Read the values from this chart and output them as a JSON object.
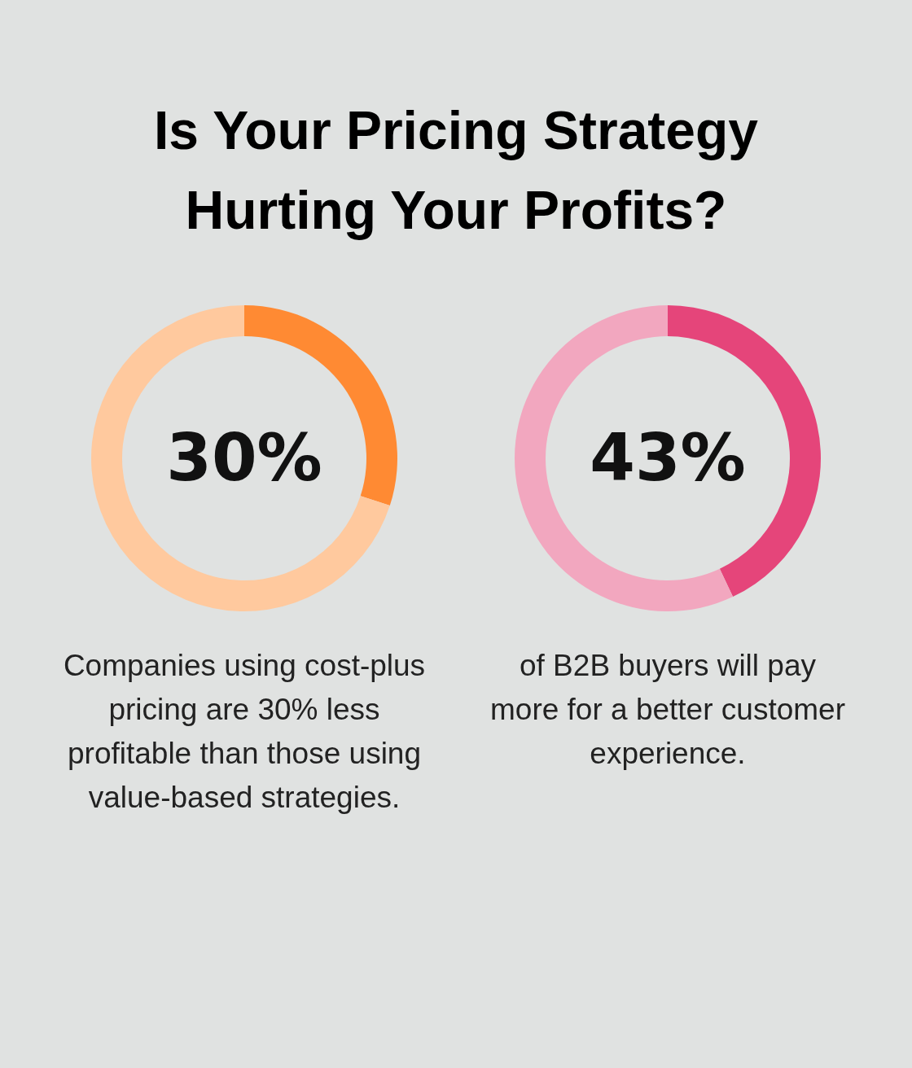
{
  "chart_data": [
    {
      "type": "donut",
      "title": "Is Your Pricing Strategy Hurting Your Profits?",
      "categories": [
        null,
        null
      ],
      "values": [
        30,
        70
      ],
      "colors": [
        "#ff8a33",
        "#ffc99e"
      ],
      "annotations": [
        "30%",
        "Companies using cost-plus pricing are 30% less profitable than those using value-based strategies."
      ]
    },
    {
      "type": "donut",
      "categories": [
        null,
        null
      ],
      "values": [
        43,
        57
      ],
      "colors": [
        "#e5457a",
        "#f2a7bf"
      ],
      "annotations": [
        "43%",
        "of B2B buyers will pay more for a better customer experience."
      ]
    }
  ]
}
